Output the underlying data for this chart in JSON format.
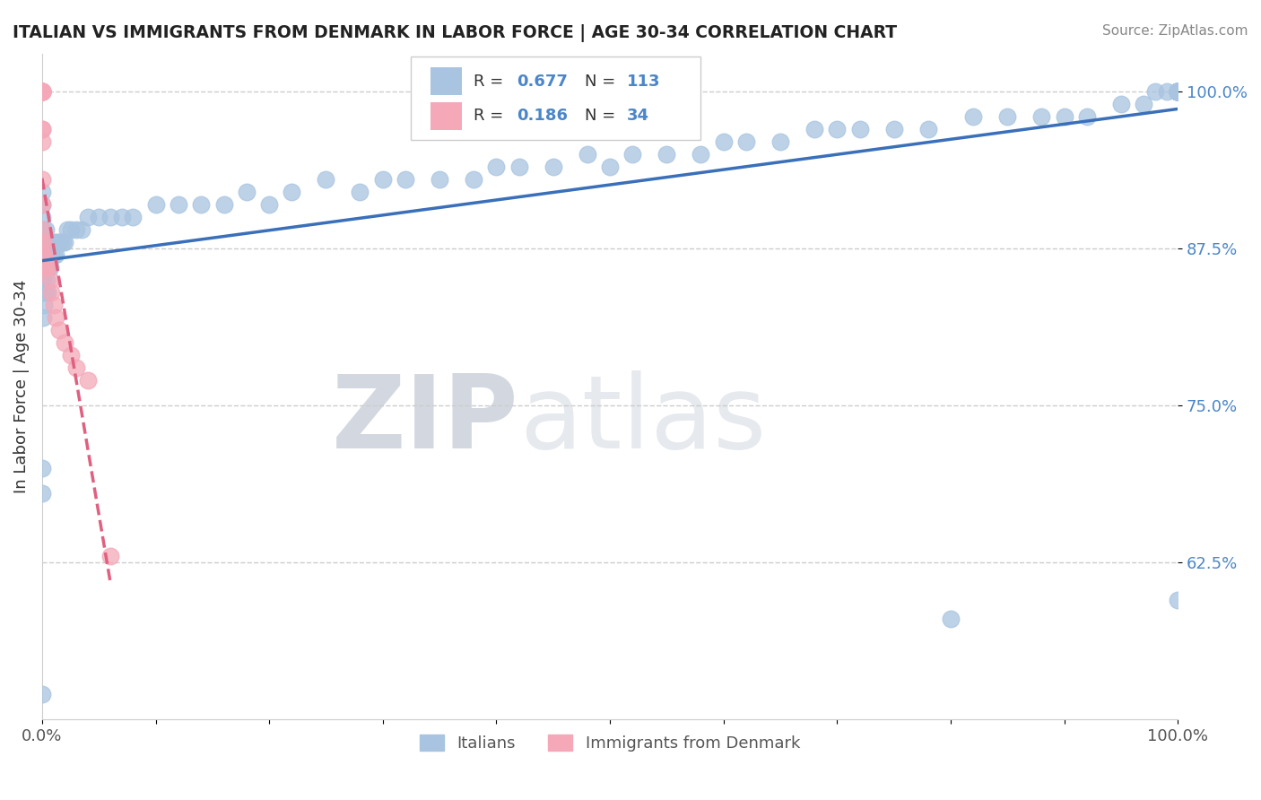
{
  "title": "ITALIAN VS IMMIGRANTS FROM DENMARK IN LABOR FORCE | AGE 30-34 CORRELATION CHART",
  "source_text": "Source: ZipAtlas.com",
  "ylabel": "In Labor Force | Age 30-34",
  "xlim": [
    0.0,
    1.0
  ],
  "ylim": [
    0.5,
    1.03
  ],
  "x_ticks": [
    0.0,
    0.1,
    0.2,
    0.3,
    0.4,
    0.5,
    0.6,
    0.7,
    0.8,
    0.9,
    1.0
  ],
  "y_tick_labels": [
    "62.5%",
    "75.0%",
    "87.5%",
    "100.0%"
  ],
  "y_ticks": [
    0.625,
    0.75,
    0.875,
    1.0
  ],
  "italians_color": "#a8c4e0",
  "denmark_color": "#f4a8b8",
  "regression_blue": "#3a6fba",
  "regression_pink": "#e06080",
  "legend_R_blue": "0.677",
  "legend_N_blue": "113",
  "legend_R_pink": "0.186",
  "legend_N_pink": "34",
  "legend_label_italians": "Italians",
  "legend_label_denmark": "Immigrants from Denmark",
  "watermark_zip": "ZIP",
  "watermark_atlas": "atlas",
  "italians_x": [
    0.0,
    0.0,
    0.0,
    0.0,
    0.0,
    0.0,
    0.0,
    0.0,
    0.0,
    0.0,
    0.001,
    0.001,
    0.001,
    0.001,
    0.001,
    0.002,
    0.002,
    0.002,
    0.003,
    0.003,
    0.003,
    0.004,
    0.004,
    0.005,
    0.005,
    0.006,
    0.007,
    0.008,
    0.009,
    0.01,
    0.01,
    0.012,
    0.013,
    0.015,
    0.016,
    0.018,
    0.02,
    0.022,
    0.025,
    0.03,
    0.035,
    0.04,
    0.05,
    0.06,
    0.07,
    0.08,
    0.1,
    0.12,
    0.14,
    0.16,
    0.18,
    0.2,
    0.22,
    0.25,
    0.28,
    0.3,
    0.32,
    0.35,
    0.38,
    0.4,
    0.42,
    0.45,
    0.48,
    0.5,
    0.52,
    0.55,
    0.58,
    0.6,
    0.62,
    0.65,
    0.68,
    0.7,
    0.72,
    0.75,
    0.78,
    0.8,
    0.82,
    0.85,
    0.88,
    0.9,
    0.92,
    0.95,
    0.97,
    0.98,
    0.99,
    1.0,
    1.0,
    1.0,
    1.0,
    1.0,
    1.0,
    1.0,
    1.0,
    1.0,
    1.0,
    1.0,
    1.0,
    1.0,
    1.0,
    1.0,
    1.0,
    1.0,
    1.0,
    1.0,
    1.0,
    1.0,
    1.0,
    1.0,
    1.0,
    1.0
  ],
  "italians_y": [
    0.85,
    0.87,
    0.88,
    0.89,
    0.9,
    0.91,
    0.92,
    0.7,
    0.68,
    0.52,
    0.82,
    0.84,
    0.85,
    0.87,
    0.89,
    0.83,
    0.86,
    0.88,
    0.84,
    0.87,
    0.89,
    0.85,
    0.88,
    0.84,
    0.87,
    0.86,
    0.86,
    0.87,
    0.87,
    0.87,
    0.88,
    0.87,
    0.88,
    0.88,
    0.88,
    0.88,
    0.88,
    0.89,
    0.89,
    0.89,
    0.89,
    0.9,
    0.9,
    0.9,
    0.9,
    0.9,
    0.91,
    0.91,
    0.91,
    0.91,
    0.92,
    0.91,
    0.92,
    0.93,
    0.92,
    0.93,
    0.93,
    0.93,
    0.93,
    0.94,
    0.94,
    0.94,
    0.95,
    0.94,
    0.95,
    0.95,
    0.95,
    0.96,
    0.96,
    0.96,
    0.97,
    0.97,
    0.97,
    0.97,
    0.97,
    0.58,
    0.98,
    0.98,
    0.98,
    0.98,
    0.98,
    0.99,
    0.99,
    1.0,
    1.0,
    1.0,
    1.0,
    1.0,
    1.0,
    1.0,
    1.0,
    1.0,
    1.0,
    1.0,
    1.0,
    1.0,
    1.0,
    1.0,
    1.0,
    1.0,
    1.0,
    1.0,
    1.0,
    1.0,
    1.0,
    1.0,
    1.0,
    1.0,
    1.0,
    0.595
  ],
  "denmark_x": [
    0.0,
    0.0,
    0.0,
    0.0,
    0.0,
    0.0,
    0.0,
    0.0,
    0.0,
    0.0,
    0.0,
    0.0,
    0.0,
    0.0,
    0.0,
    0.0,
    0.0,
    0.0,
    0.001,
    0.001,
    0.001,
    0.002,
    0.003,
    0.005,
    0.007,
    0.008,
    0.01,
    0.012,
    0.015,
    0.02,
    0.025,
    0.03,
    0.04,
    0.06
  ],
  "denmark_y": [
    1.0,
    1.0,
    1.0,
    1.0,
    1.0,
    1.0,
    1.0,
    1.0,
    1.0,
    0.97,
    0.97,
    0.96,
    0.93,
    0.91,
    0.89,
    0.88,
    0.87,
    0.86,
    0.88,
    0.87,
    0.86,
    0.87,
    0.86,
    0.86,
    0.85,
    0.84,
    0.83,
    0.82,
    0.81,
    0.8,
    0.79,
    0.78,
    0.77,
    0.63
  ]
}
